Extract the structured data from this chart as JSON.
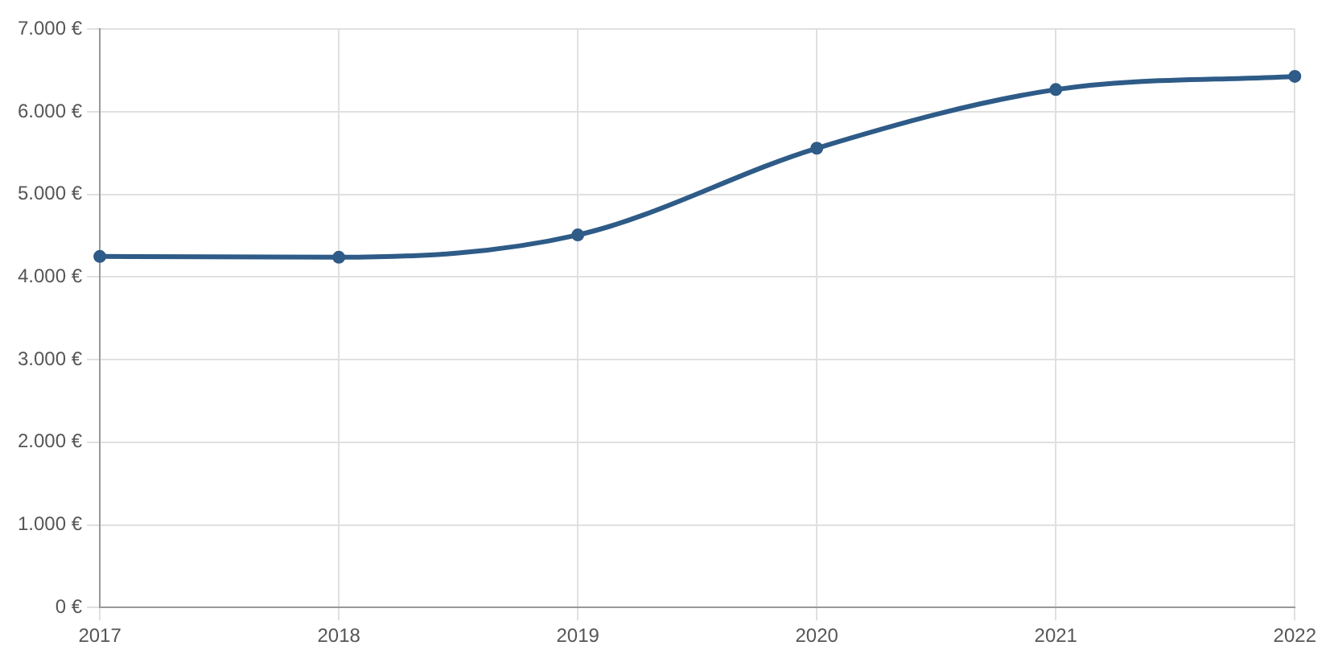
{
  "chart_data": {
    "type": "line",
    "categories": [
      "2017",
      "2018",
      "2019",
      "2020",
      "2021",
      "2022"
    ],
    "series": [
      {
        "color": "#2e5b87",
        "values": [
          4250,
          4240,
          4510,
          5560,
          6270,
          6430
        ]
      }
    ],
    "ylim": [
      0,
      7000
    ],
    "yticks": [
      {
        "value": 0,
        "label": "0 €"
      },
      {
        "value": 1000,
        "label": "1.000 €"
      },
      {
        "value": 2000,
        "label": "2.000 €"
      },
      {
        "value": 3000,
        "label": "3.000 €"
      },
      {
        "value": 4000,
        "label": "4.000 €"
      },
      {
        "value": 5000,
        "label": "5.000 €"
      },
      {
        "value": 6000,
        "label": "6.000 €"
      },
      {
        "value": 7000,
        "label": "7.000 €"
      }
    ],
    "grid": true,
    "legend": false,
    "marker": "circle",
    "line_style": "solid"
  }
}
